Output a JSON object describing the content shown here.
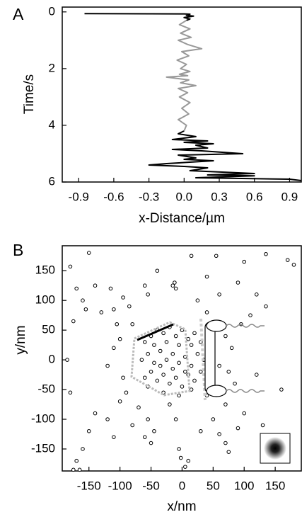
{
  "chart_data": [
    {
      "type": "line",
      "label": "A",
      "xlabel": "x-Distance/µm",
      "ylabel": "Time/s",
      "xlim": [
        -1.04,
        1.0
      ],
      "ylim": [
        6,
        -0.17
      ],
      "xticks": [
        -0.9,
        -0.6,
        -0.3,
        {
          "value": 0,
          "label": "0.0"
        },
        0.3,
        0.6,
        0.9
      ],
      "yticks": [
        0,
        2,
        4,
        6
      ],
      "series": [
        {
          "color": "#000000",
          "x": [
            -0.85,
            0.0,
            0.05,
            0.02,
            0.08,
            0.0,
            0.05,
            0.02,
            null,
            0.0,
            -0.05,
            0.1,
            -0.1,
            0.2,
            0.0,
            0.25,
            0.1,
            0.2,
            -0.1,
            0.15,
            0.5,
            -0.05,
            0.1,
            0.0,
            0.25,
            -0.15,
            -0.3,
            0.0,
            0.2,
            0.05,
            0.6,
            0.2,
            0.6,
            0.1,
            0.9,
            1.0
          ],
          "values": [
            0.06,
            0.07,
            0.08,
            0.12,
            0.15,
            0.2,
            0.25,
            0.3,
            null,
            4.2,
            4.3,
            4.4,
            4.5,
            4.55,
            4.6,
            4.65,
            4.7,
            4.8,
            4.85,
            4.9,
            5.0,
            5.05,
            5.15,
            5.2,
            5.25,
            5.35,
            5.4,
            5.45,
            5.5,
            5.6,
            5.7,
            5.75,
            5.78,
            5.85,
            5.9,
            5.95
          ]
        },
        {
          "color": "#999999",
          "x": [
            0.02,
            -0.04,
            0.05,
            -0.03,
            0.06,
            -0.05,
            0.03,
            0.15,
            -0.02,
            0.04,
            -0.06,
            0.02,
            -0.03,
            0.05,
            -0.04,
            0.03,
            -0.15,
            0.04,
            -0.03,
            0.1,
            -0.05,
            0.03,
            -0.04,
            0.05,
            -0.02,
            0.04,
            -0.05,
            0.02,
            0.0
          ],
          "values": [
            0.3,
            0.45,
            0.6,
            0.75,
            0.9,
            1.0,
            1.15,
            1.3,
            1.4,
            1.55,
            1.7,
            1.85,
            2.0,
            2.1,
            2.2,
            2.25,
            2.3,
            2.4,
            2.5,
            2.6,
            2.7,
            2.85,
            3.0,
            3.2,
            3.4,
            3.6,
            3.8,
            4.0,
            4.2
          ]
        }
      ]
    },
    {
      "type": "scatter",
      "label": "B",
      "xlabel": "x/nm",
      "ylabel": "y/nm",
      "xlim": [
        -193,
        192
      ],
      "ylim": [
        -187,
        192
      ],
      "xticks": [
        -150,
        -100,
        -50,
        0,
        50,
        100,
        150
      ],
      "yticks": [
        -150,
        -100,
        -50,
        0,
        50,
        100,
        150
      ],
      "series": [
        {
          "color": "#000000",
          "x": [
            -180,
            -150,
            -170,
            -160,
            -140,
            -130,
            -175,
            -155,
            -115,
            -110,
            -105,
            -100,
            -60,
            -55,
            -40,
            -15,
            -10,
            -12,
            -95,
            -85,
            -80,
            15,
            55,
            100,
            135,
            170,
            180,
            40,
            90,
            120,
            135,
            25,
            60,
            110,
            95,
            40,
            -90,
            -100,
            -140,
            -150,
            -160,
            -170,
            -175,
            -165,
            -185,
            -180,
            -120,
            -110,
            -80,
            -70,
            -55,
            -60,
            -50,
            -45,
            -20,
            -10,
            -5,
            -2,
            5,
            10,
            30,
            50,
            60,
            70,
            75,
            90,
            100,
            130,
            160,
            70,
            40,
            60,
            75,
            80,
            70,
            120,
            85,
            -120,
            -110,
            -95,
            -60,
            -50,
            -40,
            -30,
            -20,
            -10,
            0,
            10,
            20,
            30,
            -65,
            -55,
            -45,
            -35,
            -25,
            -15,
            -5,
            5,
            15,
            25,
            35,
            -60,
            -50,
            -40,
            -30,
            -20,
            -10,
            0,
            10,
            20,
            30,
            -45,
            -25,
            -5,
            15,
            -35,
            -15,
            5,
            -55,
            -30,
            -5,
            15
          ],
          "values": [
            157,
            180,
            120,
            100,
            125,
            80,
            65,
            85,
            120,
            85,
            60,
            35,
            125,
            110,
            150,
            125,
            120,
            130,
            105,
            90,
            60,
            175,
            175,
            165,
            178,
            168,
            160,
            140,
            130,
            110,
            90,
            100,
            110,
            75,
            60,
            80,
            -55,
            -70,
            -90,
            -120,
            -150,
            -170,
            -185,
            -185,
            0,
            -55,
            -100,
            -130,
            -110,
            -80,
            -100,
            -130,
            -140,
            -120,
            -75,
            -100,
            -150,
            -165,
            -180,
            -170,
            -120,
            -100,
            -125,
            -140,
            -155,
            -115,
            -90,
            -110,
            -50,
            -75,
            -60,
            -10,
            -20,
            20,
            40,
            -25,
            -40,
            -10,
            20,
            -30,
            30,
            40,
            50,
            45,
            55,
            40,
            50,
            35,
            45,
            30,
            0,
            10,
            -5,
            15,
            0,
            10,
            -5,
            5,
            -10,
            10,
            0,
            -30,
            -20,
            -35,
            -25,
            -40,
            -30,
            -45,
            -25,
            -35,
            -20,
            25,
            30,
            25,
            25,
            -10,
            -15,
            -20,
            -45,
            -55,
            -60,
            -50
          ]
        }
      ]
    }
  ]
}
